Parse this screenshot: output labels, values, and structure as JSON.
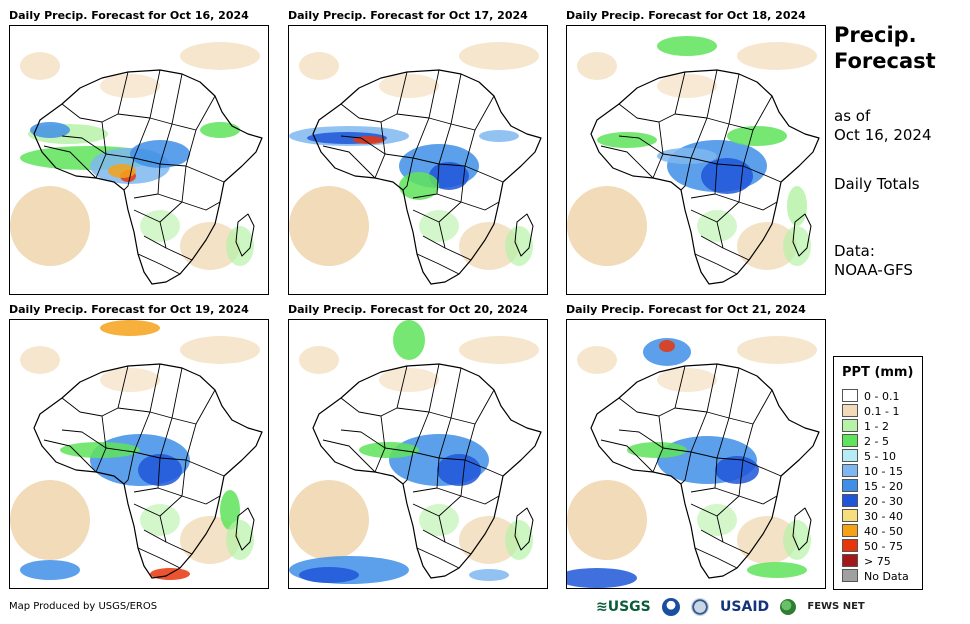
{
  "panels": [
    {
      "title": "Daily Precip. Forecast for Oct 16, 2024"
    },
    {
      "title": "Daily Precip. Forecast for Oct 17, 2024"
    },
    {
      "title": "Daily Precip. Forecast for Oct 18, 2024"
    },
    {
      "title": "Daily Precip. Forecast for Oct 19, 2024"
    },
    {
      "title": "Daily Precip. Forecast for Oct 20, 2024"
    },
    {
      "title": "Daily Precip. Forecast for Oct 21, 2024"
    }
  ],
  "side": {
    "title_line1": "Precip.",
    "title_line2": "Forecast",
    "as_of_line1": "as of",
    "as_of_line2": "Oct 16, 2024",
    "totals": "Daily Totals",
    "data_line1": "Data:",
    "data_line2": "NOAA-GFS"
  },
  "legend": {
    "title": "PPT (mm)",
    "items": [
      {
        "label": "0 - 0.1",
        "color": "#ffffff"
      },
      {
        "label": "0.1 - 1",
        "color": "#f1dbb8"
      },
      {
        "label": "1 - 2",
        "color": "#b6f2a8"
      },
      {
        "label": "2 - 5",
        "color": "#5fe35a"
      },
      {
        "label": "5 - 10",
        "color": "#b5ecf5"
      },
      {
        "label": "10 - 15",
        "color": "#7fb7f0"
      },
      {
        "label": "15 - 20",
        "color": "#3f8fe8"
      },
      {
        "label": "20 - 30",
        "color": "#1f56d8"
      },
      {
        "label": "30 - 40",
        "color": "#f7de7d"
      },
      {
        "label": "40 - 50",
        "color": "#f5a219"
      },
      {
        "label": "50 - 75",
        "color": "#e8360c"
      },
      {
        "label": "> 75",
        "color": "#a31818"
      },
      {
        "label": "No Data",
        "color": "#a0a0a0"
      }
    ]
  },
  "footer": {
    "credit": "Map Produced by USGS/EROS"
  },
  "logos": {
    "usgs": "≋USGS",
    "usaid": "USAID",
    "fews": "FEWS NET"
  }
}
